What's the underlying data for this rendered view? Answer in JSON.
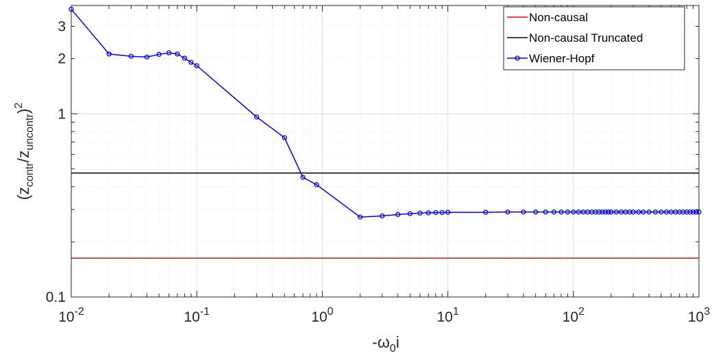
{
  "chart_data": {
    "type": "line",
    "xlabel": "-ω0i",
    "ylabel": "(zcontr/zuncontr)^2",
    "xlabel_parts": {
      "main": "-ω",
      "sub": "0",
      "tail": "i"
    },
    "ylabel_parts": {
      "open": "(z",
      "sub1": "contr",
      "mid": "/z",
      "sub2": "uncontr",
      "close": ")",
      "sup": "2"
    },
    "x_scale": "log",
    "y_scale": "log",
    "xlim": [
      0.01,
      1000
    ],
    "ylim": [
      0.1,
      3.9
    ],
    "grid": true,
    "legend_position": "top-right",
    "x_ticks": [
      {
        "value": 0.01,
        "base": "10",
        "exp": "-2"
      },
      {
        "value": 0.1,
        "base": "10",
        "exp": "-1"
      },
      {
        "value": 1,
        "base": "10",
        "exp": "0"
      },
      {
        "value": 10,
        "base": "10",
        "exp": "1"
      },
      {
        "value": 100,
        "base": "10",
        "exp": "2"
      },
      {
        "value": 1000,
        "base": "10",
        "exp": "3"
      }
    ],
    "y_ticks": [
      {
        "value": 0.1,
        "label": "0.1"
      },
      {
        "value": 1,
        "label": "1"
      },
      {
        "value": 2,
        "label": "2"
      },
      {
        "value": 3,
        "label": "3"
      }
    ],
    "series": [
      {
        "name": "Non-causal",
        "color": "#ff0000",
        "marker": "none",
        "x": [
          0.01,
          1000
        ],
        "y": [
          0.163,
          0.163
        ]
      },
      {
        "name": "Non-causal Truncated",
        "color": "#000000",
        "marker": "none",
        "x": [
          0.01,
          1000
        ],
        "y": [
          0.475,
          0.475
        ]
      },
      {
        "name": "Wiener-Hopf",
        "color": "#0000ff",
        "marker": "circle",
        "x": [
          0.01,
          0.02,
          0.03,
          0.04,
          0.05,
          0.06,
          0.07,
          0.08,
          0.09,
          0.1,
          0.3,
          0.5,
          0.7,
          0.9,
          2,
          3,
          4,
          5,
          6,
          7,
          8,
          9,
          10,
          20,
          30,
          40,
          50,
          60,
          70,
          80,
          90,
          100,
          110,
          120,
          130,
          140,
          150,
          160,
          170,
          180,
          190,
          200,
          220,
          240,
          260,
          280,
          300,
          330,
          360,
          400,
          450,
          500,
          550,
          600,
          650,
          700,
          750,
          800,
          850,
          900,
          950,
          1000
        ],
        "y": [
          3.72,
          2.12,
          2.06,
          2.04,
          2.11,
          2.15,
          2.12,
          2.01,
          1.91,
          1.83,
          0.96,
          0.74,
          0.45,
          0.41,
          0.273,
          0.277,
          0.282,
          0.285,
          0.287,
          0.288,
          0.289,
          0.289,
          0.29,
          0.29,
          0.291,
          0.291,
          0.291,
          0.291,
          0.291,
          0.291,
          0.291,
          0.291,
          0.291,
          0.291,
          0.291,
          0.291,
          0.291,
          0.291,
          0.291,
          0.291,
          0.291,
          0.291,
          0.291,
          0.291,
          0.291,
          0.291,
          0.291,
          0.291,
          0.291,
          0.291,
          0.291,
          0.291,
          0.291,
          0.291,
          0.291,
          0.291,
          0.291,
          0.291,
          0.291,
          0.291,
          0.291,
          0.291
        ]
      }
    ]
  }
}
